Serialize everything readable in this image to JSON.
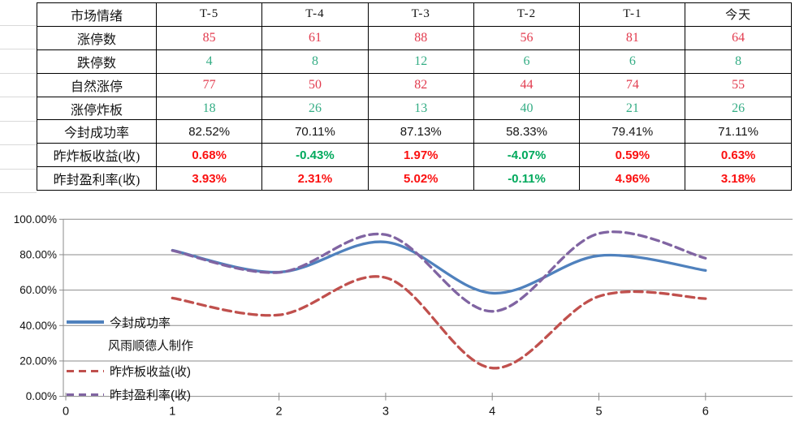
{
  "table": {
    "header_label": "市场情绪",
    "columns": [
      "T-5",
      "T-4",
      "T-3",
      "T-2",
      "T-1",
      "今天"
    ],
    "rows": [
      {
        "label": "涨停数",
        "style": "serif",
        "values": [
          "85",
          "61",
          "88",
          "56",
          "81",
          "64"
        ],
        "colors": [
          "red",
          "red",
          "red",
          "red",
          "red",
          "red"
        ]
      },
      {
        "label": "跌停数",
        "style": "serif",
        "values": [
          "4",
          "8",
          "12",
          "6",
          "6",
          "8"
        ],
        "colors": [
          "green",
          "green",
          "green",
          "green",
          "green",
          "green"
        ]
      },
      {
        "label": "自然涨停",
        "style": "serif",
        "values": [
          "77",
          "50",
          "82",
          "44",
          "74",
          "55"
        ],
        "colors": [
          "red",
          "red",
          "red",
          "red",
          "red",
          "red"
        ]
      },
      {
        "label": "涨停炸板",
        "style": "serif",
        "values": [
          "18",
          "26",
          "13",
          "40",
          "21",
          "26"
        ],
        "colors": [
          "green",
          "green",
          "green",
          "green",
          "green",
          "green"
        ]
      },
      {
        "label": "今封成功率",
        "style": "sans",
        "values": [
          "82.52%",
          "70.11%",
          "87.13%",
          "58.33%",
          "79.41%",
          "71.11%"
        ],
        "colors": [
          "black",
          "black",
          "black",
          "black",
          "black",
          "black"
        ]
      },
      {
        "label": "昨炸板收益(收)",
        "style": "sans-bold",
        "values": [
          "0.68%",
          "-0.43%",
          "1.97%",
          "-4.07%",
          "0.59%",
          "0.63%"
        ],
        "colors": [
          "red",
          "green",
          "red",
          "green",
          "red",
          "red"
        ]
      },
      {
        "label": "昨封盈利率(收)",
        "style": "sans-bold",
        "values": [
          "3.93%",
          "2.31%",
          "5.02%",
          "-0.11%",
          "4.96%",
          "3.18%"
        ],
        "colors": [
          "red",
          "red",
          "red",
          "green",
          "red",
          "red"
        ]
      }
    ]
  },
  "colors": {
    "value_red": "#e23b4e",
    "value_green": "#35ad85",
    "bold_red": "#fb1010",
    "bold_green": "#00a95c",
    "text_black": "#141414",
    "grid_gray": "#8b8b8b",
    "faint_gray": "#d9d9d9",
    "series_blue": "#4f81bd",
    "series_red": "#c0504d",
    "series_purple": "#8064a2"
  },
  "chart_data": {
    "type": "line",
    "x": [
      1,
      2,
      3,
      4,
      5,
      6
    ],
    "series": [
      {
        "name": "今封成功率",
        "color": "#4f81bd",
        "dash": "solid",
        "values": [
          82.52,
          70.11,
          87.13,
          58.33,
          79.41,
          71.11
        ]
      },
      {
        "name": "昨炸板收益(收)",
        "color": "#c0504d",
        "dash": "dashed",
        "values": [
          55.5,
          46.0,
          67.0,
          16.0,
          56.5,
          55.2
        ]
      },
      {
        "name": "昨封盈利率(收)",
        "color": "#8064a2",
        "dash": "dashed",
        "values": [
          82.3,
          70.0,
          91.3,
          48.0,
          92.0,
          78.0
        ]
      }
    ],
    "ylim": [
      0,
      100
    ],
    "y_ticks": [
      "0.00%",
      "20.00%",
      "40.00%",
      "60.00%",
      "80.00%",
      "100.00%"
    ],
    "x_ticks": [
      "0",
      "1",
      "2",
      "3",
      "4",
      "5",
      "6"
    ],
    "grid": "on",
    "legend_position": "inside-left",
    "watermark": "风雨顺德人制作"
  }
}
